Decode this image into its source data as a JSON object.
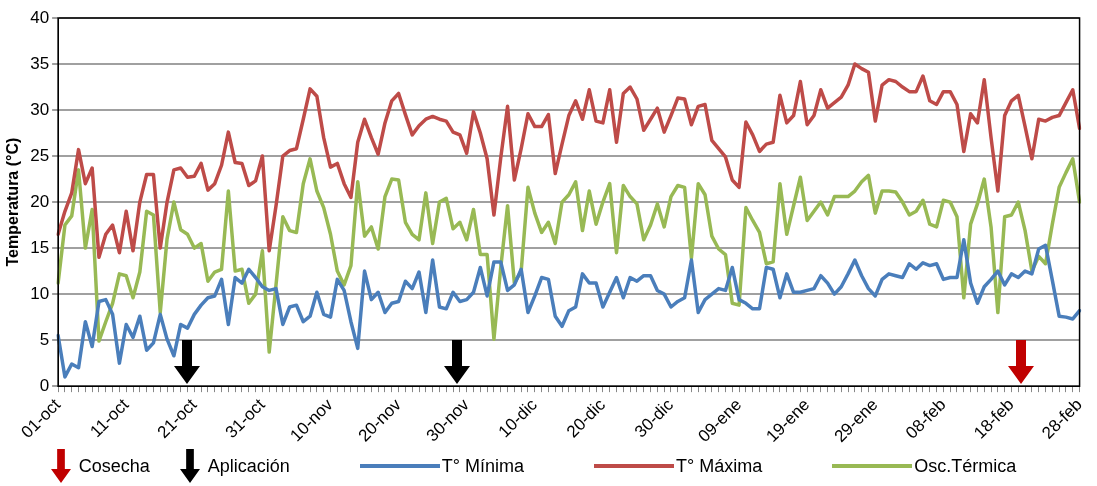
{
  "chart_data": {
    "type": "line",
    "ylabel": "Temperatura (°C)",
    "categories": [
      "01-oct",
      null,
      null,
      null,
      null,
      null,
      null,
      null,
      null,
      null,
      "11-oct",
      null,
      null,
      null,
      null,
      null,
      null,
      null,
      null,
      null,
      "21-oct",
      null,
      null,
      null,
      null,
      null,
      null,
      null,
      null,
      null,
      "31-oct",
      null,
      null,
      null,
      null,
      null,
      null,
      null,
      null,
      null,
      "10-nov",
      null,
      null,
      null,
      null,
      null,
      null,
      null,
      null,
      null,
      "20-nov",
      null,
      null,
      null,
      null,
      null,
      null,
      null,
      null,
      null,
      "30-nov",
      null,
      null,
      null,
      null,
      null,
      null,
      null,
      null,
      null,
      "10-dic",
      null,
      null,
      null,
      null,
      null,
      null,
      null,
      null,
      null,
      "20-dic",
      null,
      null,
      null,
      null,
      null,
      null,
      null,
      null,
      null,
      "30-dic",
      null,
      null,
      null,
      null,
      null,
      null,
      null,
      null,
      null,
      "09-ene",
      null,
      null,
      null,
      null,
      null,
      null,
      null,
      null,
      null,
      "19-ene",
      null,
      null,
      null,
      null,
      null,
      null,
      null,
      null,
      null,
      "29-ene",
      null,
      null,
      null,
      null,
      null,
      null,
      null,
      null,
      null,
      "08-feb",
      null,
      null,
      null,
      null,
      null,
      null,
      null,
      null,
      null,
      "18-feb",
      null,
      null,
      null,
      null,
      null,
      null,
      null,
      null,
      null,
      "28-feb"
    ],
    "series": [
      {
        "name": "T° Mínima",
        "color": "#4a7ebb",
        "values": [
          5.5,
          1,
          2.4,
          2,
          7,
          4.3,
          9.2,
          9.4,
          7.8,
          2.5,
          6.7,
          5.3,
          7.6,
          3.9,
          4.7,
          7.8,
          5.1,
          3.3,
          6.7,
          6.3,
          7.8,
          8.8,
          9.6,
          9.8,
          11.6,
          6.7,
          11.8,
          11.2,
          12.7,
          11.8,
          10.8,
          10.4,
          10.6,
          6.7,
          8.6,
          8.8,
          7,
          7.6,
          10.2,
          7.8,
          7.5,
          11.6,
          10.4,
          7,
          4.1,
          12.5,
          9.4,
          10.2,
          8,
          9,
          9.2,
          11.4,
          10.6,
          12.4,
          8,
          13.7,
          8.6,
          8.4,
          10.2,
          9.2,
          9.4,
          10.2,
          12.9,
          9.8,
          13.5,
          13.5,
          10.4,
          11,
          12.7,
          8,
          9.8,
          11.8,
          11.6,
          7.6,
          6.5,
          8.2,
          8.6,
          12.2,
          11.2,
          11.2,
          8.6,
          10.2,
          11.8,
          9.6,
          11.8,
          11.4,
          12,
          12,
          10.4,
          10,
          8.6,
          9.2,
          9.6,
          13.7,
          8,
          9.4,
          10,
          10.6,
          10.4,
          12.9,
          9.4,
          9,
          8.4,
          8.4,
          12.9,
          12.7,
          9.6,
          12.2,
          10.2,
          10.2,
          10.4,
          10.6,
          12,
          11.2,
          10,
          10.8,
          12.2,
          13.7,
          12,
          10.6,
          9.8,
          11.6,
          12.2,
          12,
          11.8,
          13.3,
          12.7,
          13.4,
          13.1,
          13.3,
          11.6,
          11.8,
          11.8,
          15.9,
          11.2,
          9,
          10.8,
          11.6,
          12.5,
          11,
          12.2,
          11.8,
          12.5,
          12.2,
          14.9,
          15.3,
          11.5,
          7.6,
          7.5,
          7.3,
          8.2
        ]
      },
      {
        "name": "T° Máxima",
        "color": "#be4b48",
        "values": [
          16.5,
          19,
          21,
          25.7,
          22,
          23.7,
          14,
          16.5,
          17.5,
          14.5,
          19,
          14.7,
          20,
          23,
          23,
          15,
          20,
          23.5,
          23.7,
          22.7,
          22.8,
          24.2,
          21.3,
          22,
          24,
          27.6,
          24.3,
          24.2,
          21.8,
          22.3,
          25,
          14.7,
          19.6,
          25,
          25.6,
          25.8,
          29,
          32.3,
          31.5,
          27,
          23.8,
          24.2,
          22,
          20.5,
          26.5,
          29,
          27,
          25.2,
          28.6,
          31,
          31.8,
          29.5,
          27.3,
          28.3,
          29,
          29.3,
          29,
          28.8,
          27.6,
          27.3,
          25.3,
          29.8,
          27.5,
          24.7,
          18.6,
          24.8,
          30.4,
          22.4,
          25.8,
          29.6,
          28.2,
          28.2,
          29.5,
          23.1,
          26.3,
          29.4,
          31,
          29,
          32.2,
          28.8,
          28.6,
          32.2,
          26.5,
          31.8,
          32.5,
          31.2,
          27.8,
          29,
          30.2,
          27.6,
          29.4,
          31.3,
          31.2,
          28.4,
          30.4,
          30.6,
          26.7,
          25.8,
          24.9,
          22.4,
          21.6,
          28.7,
          27.3,
          25.5,
          26.3,
          26.5,
          31.6,
          28.6,
          29.4,
          33.1,
          28.4,
          29.4,
          32.2,
          30.2,
          30.8,
          31.4,
          32.7,
          35,
          34.5,
          34.1,
          28.8,
          32.7,
          33.3,
          33.1,
          32.5,
          32,
          32,
          33.7,
          31,
          30.6,
          32,
          32,
          30.6,
          25.5,
          29.6,
          28.6,
          33.3,
          27,
          21.2,
          29.4,
          31,
          31.6,
          28.2,
          24.7,
          29,
          28.8,
          29.2,
          29.4,
          30.8,
          32.2,
          28
        ]
      },
      {
        "name": "Osc.Térmica",
        "color": "#98b954",
        "values": [
          11.2,
          17.5,
          18.5,
          23.5,
          15,
          19.2,
          4.9,
          7,
          9,
          12.2,
          12,
          9.6,
          12.4,
          19,
          18.6,
          8,
          16,
          20,
          17,
          16.5,
          15,
          15.5,
          11.4,
          12.4,
          12.7,
          21.2,
          12.5,
          12.7,
          9,
          10,
          14.7,
          3.7,
          11,
          18.4,
          16.9,
          16.7,
          22,
          24.7,
          21.2,
          19.4,
          16.5,
          12.5,
          11,
          13.1,
          22.2,
          16.3,
          17.3,
          14.9,
          20.6,
          22.5,
          22.4,
          17.8,
          16.5,
          15.9,
          21,
          15.5,
          20,
          20.4,
          17.1,
          17.8,
          15.9,
          19.2,
          14.3,
          14.3,
          5.1,
          12.9,
          19.6,
          11.2,
          12.5,
          21.6,
          18.8,
          16.7,
          17.8,
          15.5,
          20,
          20.8,
          22.2,
          16.9,
          21.2,
          17.6,
          20,
          22,
          14.5,
          21.8,
          20.6,
          19.8,
          15.9,
          17.5,
          19.8,
          17.3,
          20.6,
          21.8,
          21.6,
          13.9,
          22,
          20.8,
          16.3,
          14.9,
          14.3,
          9,
          8.8,
          19.4,
          18,
          16.7,
          13.3,
          13.5,
          22,
          16.5,
          19.6,
          22.7,
          18,
          19,
          20,
          18.6,
          20.6,
          20.6,
          20.6,
          21.2,
          22.2,
          22.9,
          18.8,
          21.2,
          21.2,
          21.1,
          20,
          18.6,
          19,
          20.2,
          17.6,
          17.3,
          20.2,
          20,
          18.4,
          9.6,
          17.6,
          19.8,
          22.5,
          17.3,
          8,
          18.4,
          18.6,
          20,
          16.9,
          12.5,
          14.1,
          13.3,
          17.6,
          21.6,
          23.2,
          24.7,
          20
        ]
      }
    ],
    "ylim": [
      0,
      40
    ],
    "yticks": [
      0,
      5,
      10,
      15,
      20,
      25,
      30,
      35,
      40
    ],
    "grid": "y",
    "legend": "bottom",
    "marker": "none",
    "line_style": "solid",
    "annotations": [
      "Cosecha",
      "Aplicación"
    ]
  }
}
